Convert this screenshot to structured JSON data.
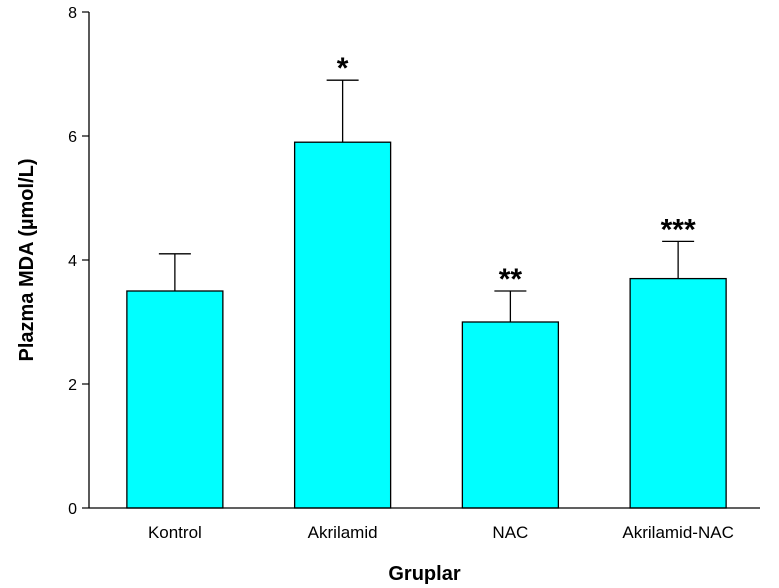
{
  "chart_data": {
    "type": "bar",
    "title": "",
    "xlabel": "Gruplar",
    "ylabel": "Plazma MDA (µmol/L)",
    "ylim": [
      0,
      8
    ],
    "yticks": [
      0,
      2,
      4,
      6,
      8
    ],
    "grid": false,
    "categories": [
      "Kontrol",
      "Akrilamid",
      "NAC",
      "Akrilamid-NAC"
    ],
    "values": [
      3.5,
      5.9,
      3.0,
      3.7
    ],
    "error_upper": [
      0.6,
      1.0,
      0.5,
      0.6
    ],
    "annotations": [
      "",
      "*",
      "**",
      "***"
    ],
    "bar_color": "#00FFFF"
  }
}
